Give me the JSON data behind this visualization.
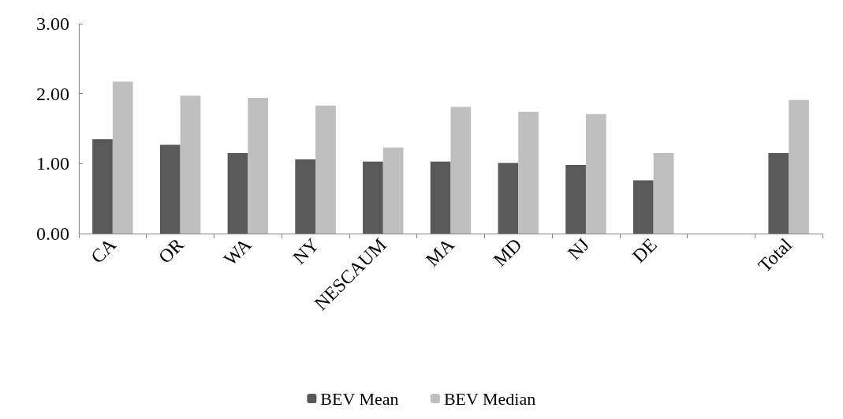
{
  "chart_data": {
    "type": "bar",
    "categories": [
      "CA",
      "OR",
      "WA",
      "NY",
      "NESCAUM",
      "MA",
      "MD",
      "NJ",
      "DE",
      null,
      "Total"
    ],
    "series": [
      {
        "name": "BEV Mean",
        "color": "#595959",
        "values": [
          1.35,
          1.27,
          1.15,
          1.06,
          1.03,
          1.03,
          1.01,
          0.98,
          0.76,
          null,
          1.15
        ]
      },
      {
        "name": "BEV Median",
        "color": "#bfbfbf",
        "values": [
          2.17,
          1.97,
          1.94,
          1.83,
          1.23,
          1.81,
          1.74,
          1.71,
          1.15,
          null,
          1.91
        ]
      }
    ],
    "ylim": [
      0,
      3
    ],
    "yticks": [
      {
        "value": 0,
        "label": "0.00"
      },
      {
        "value": 1,
        "label": "1.00"
      },
      {
        "value": 2,
        "label": "2.00"
      },
      {
        "value": 3,
        "label": "3.00"
      }
    ],
    "grid": false,
    "legend": "bottom"
  }
}
